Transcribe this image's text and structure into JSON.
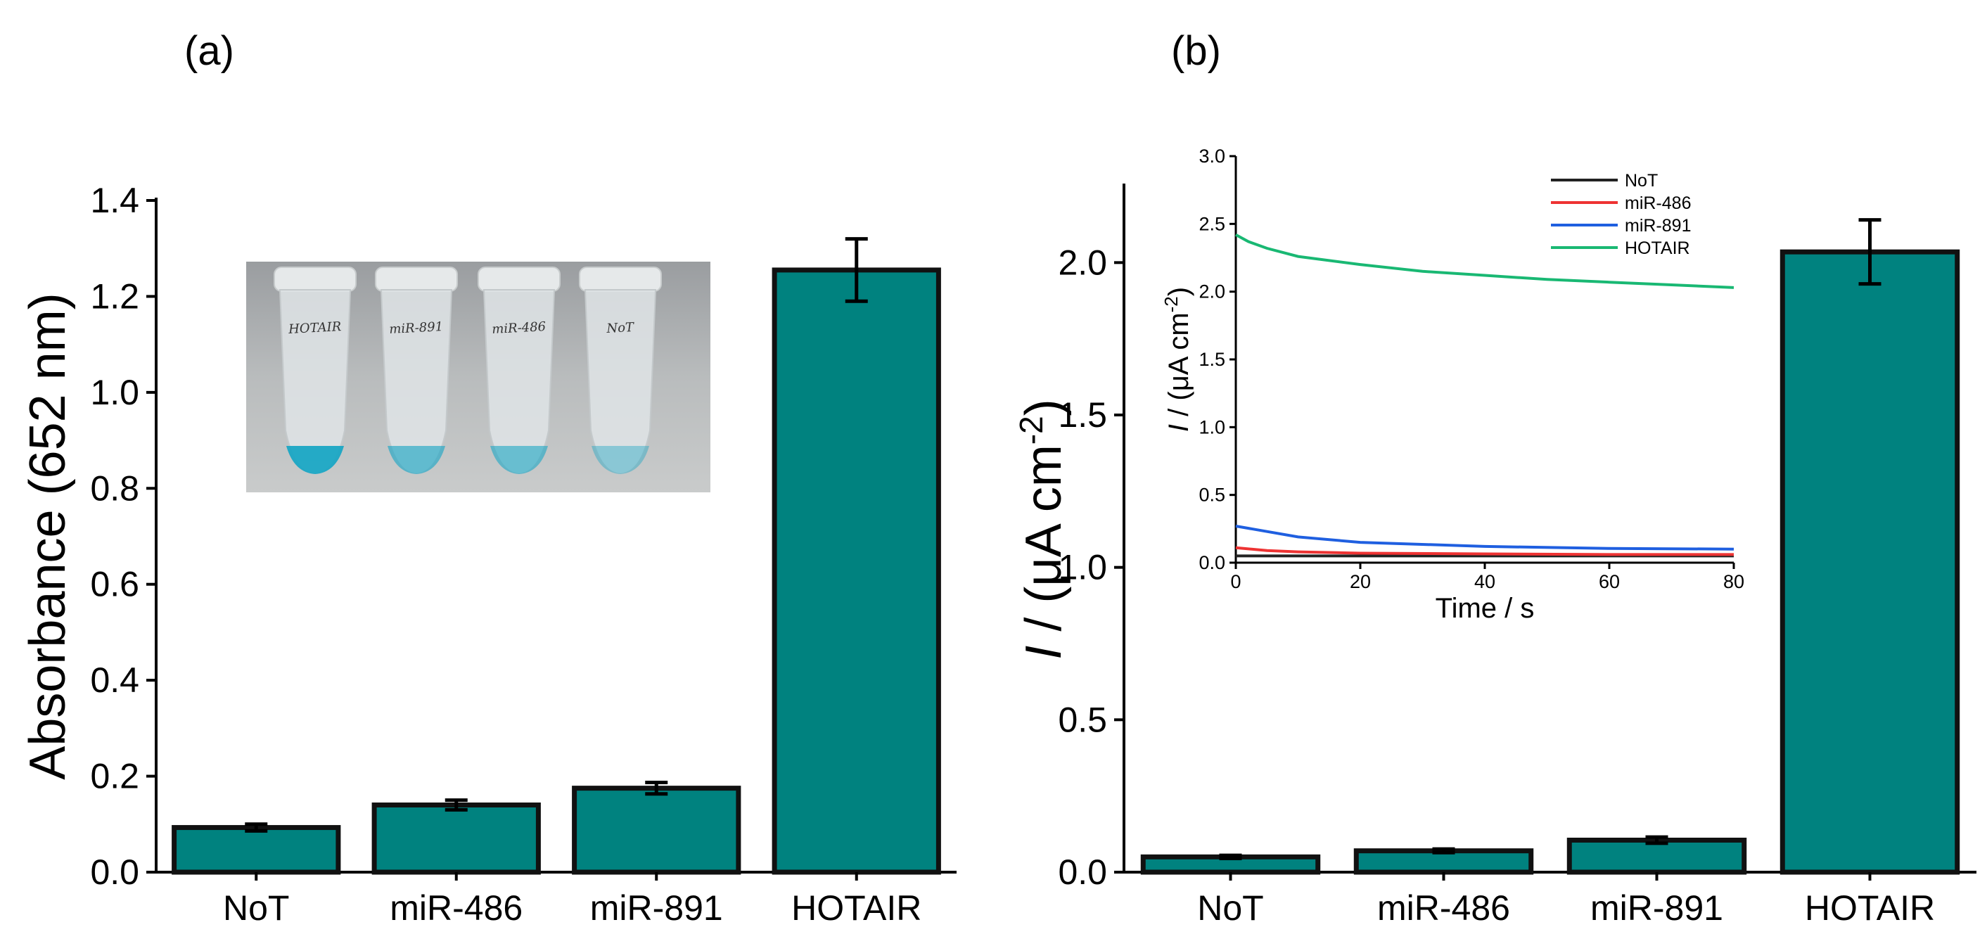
{
  "colors": {
    "bar_fill": "#00827f",
    "bar_stroke": "#111111",
    "NoT": "#222222",
    "miR-486": "#ee3333",
    "miR-891": "#1f5fe0",
    "HOTAIR": "#19b873"
  },
  "chart_data": [
    {
      "panel": "(a)",
      "type": "bar",
      "categories": [
        "NoT",
        "miR-486",
        "miR-891",
        "HOTAIR"
      ],
      "values": [
        0.093,
        0.14,
        0.175,
        1.255
      ],
      "errors": [
        0.007,
        0.01,
        0.012,
        0.065
      ],
      "ylabel": "Absorbance (652 nm)",
      "ylim": [
        0,
        1.4
      ],
      "yticks": [
        "0.0",
        "0.2",
        "0.4",
        "0.6",
        "0.8",
        "1.0",
        "1.2",
        "1.4"
      ],
      "inset": {
        "type": "photo",
        "description_icon": "tube-photo",
        "tubes": [
          {
            "label": "HOTAIR",
            "intensity": 1.0
          },
          {
            "label": "miR-891",
            "intensity": 0.55
          },
          {
            "label": "miR-486",
            "intensity": 0.5
          },
          {
            "label": "NoT",
            "intensity": 0.25
          }
        ]
      }
    },
    {
      "panel": "(b)",
      "type": "bar",
      "categories": [
        "NoT",
        "miR-486",
        "miR-891",
        "HOTAIR"
      ],
      "values": [
        0.05,
        0.07,
        0.105,
        2.035
      ],
      "errors": [
        0.005,
        0.006,
        0.01,
        0.105
      ],
      "ylabel_italic": "I",
      "ylabel_rest": " / (μA cm",
      "ylabel_sup": "-2",
      "ylabel_close": ")",
      "ylim": [
        0,
        2.25
      ],
      "yticks": [
        "0.0",
        "0.5",
        "1.0",
        "1.5",
        "2.0"
      ],
      "inset": {
        "type": "line",
        "xlabel": "Time / s",
        "ylabel_italic": "I",
        "ylabel_rest": " / (μA cm",
        "ylabel_sup": "-2",
        "ylabel_close": ")",
        "xlim": [
          0,
          80
        ],
        "ylim": [
          0,
          3.0
        ],
        "xticks": [
          "0",
          "20",
          "40",
          "60",
          "80"
        ],
        "yticks": [
          "0.0",
          "0.5",
          "1.0",
          "1.5",
          "2.0",
          "2.5",
          "3.0"
        ],
        "legend": "top-right",
        "series": [
          {
            "name": "NoT",
            "x": [
              0,
              5,
              10,
              20,
              40,
              60,
              80
            ],
            "y": [
              0.05,
              0.05,
              0.05,
              0.05,
              0.05,
              0.05,
              0.05
            ]
          },
          {
            "name": "miR-486",
            "x": [
              0,
              5,
              10,
              20,
              40,
              60,
              80
            ],
            "y": [
              0.11,
              0.09,
              0.08,
              0.07,
              0.065,
              0.06,
              0.06
            ]
          },
          {
            "name": "miR-891",
            "x": [
              0,
              5,
              10,
              20,
              40,
              60,
              80
            ],
            "y": [
              0.27,
              0.23,
              0.19,
              0.15,
              0.12,
              0.105,
              0.1
            ]
          },
          {
            "name": "HOTAIR",
            "x": [
              0,
              2,
              5,
              10,
              20,
              30,
              40,
              50,
              60,
              70,
              80
            ],
            "y": [
              2.42,
              2.37,
              2.32,
              2.26,
              2.2,
              2.15,
              2.12,
              2.09,
              2.07,
              2.05,
              2.03
            ]
          }
        ]
      }
    }
  ]
}
